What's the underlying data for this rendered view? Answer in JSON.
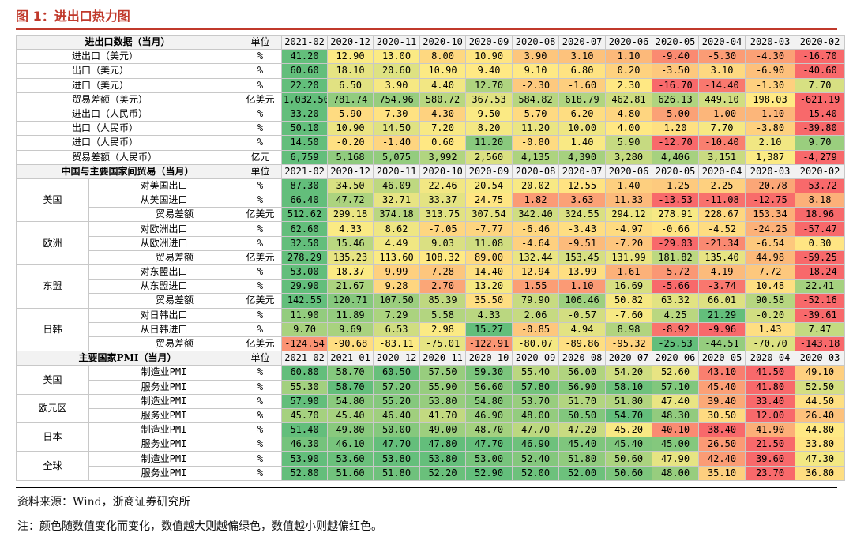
{
  "figure_title": "图 1：进出口热力图",
  "source_note": "资料来源：Wind，浙商证券研究所",
  "color_note": "注：颜色随数值变化而变化，数值越大则越偏绿色，数值越小则越偏红色。",
  "palette": {
    "red": "#f8696b",
    "yellow": "#ffeb84",
    "green": "#63be7b"
  },
  "sections": [
    {
      "title": "进出口数据（当月）",
      "unit_header": "单位",
      "dates": [
        "2021-02",
        "2020-12",
        "2020-11",
        "2020-10",
        "2020-09",
        "2020-08",
        "2020-07",
        "2020-06",
        "2020-05",
        "2020-04",
        "2020-03",
        "2020-02"
      ],
      "rows": [
        {
          "label": "进出口（美元）",
          "unit": "%",
          "values": [
            "41.20",
            "12.90",
            "13.00",
            "8.00",
            "10.90",
            "3.90",
            "3.10",
            "1.10",
            "-9.40",
            "-5.30",
            "-4.30",
            "-16.70"
          ]
        },
        {
          "label": "出口（美元）",
          "unit": "%",
          "values": [
            "60.60",
            "18.10",
            "20.60",
            "10.90",
            "9.40",
            "9.10",
            "6.80",
            "0.20",
            "-3.50",
            "3.10",
            "-6.90",
            "-40.60"
          ]
        },
        {
          "label": "进口（美元）",
          "unit": "%",
          "values": [
            "22.20",
            "6.50",
            "3.90",
            "4.40",
            "12.70",
            "-2.30",
            "-1.60",
            "2.30",
            "-16.70",
            "-14.40",
            "-1.30",
            "7.70"
          ]
        },
        {
          "label": "贸易差额（美元）",
          "unit": "亿美元",
          "values": [
            "1,032.50",
            "781.74",
            "754.96",
            "580.72",
            "367.53",
            "584.82",
            "618.79",
            "462.81",
            "626.13",
            "449.10",
            "198.03",
            "-621.19"
          ]
        },
        {
          "label": "进出口（人民币）",
          "unit": "%",
          "values": [
            "33.20",
            "5.90",
            "7.30",
            "4.30",
            "9.50",
            "5.70",
            "6.20",
            "4.80",
            "-5.00",
            "-1.00",
            "-1.10",
            "-15.40"
          ]
        },
        {
          "label": "出口（人民币）",
          "unit": "%",
          "values": [
            "50.10",
            "10.90",
            "14.50",
            "7.20",
            "8.20",
            "11.20",
            "10.00",
            "4.00",
            "1.20",
            "7.70",
            "-3.80",
            "-39.80"
          ]
        },
        {
          "label": "进口（人民币）",
          "unit": "%",
          "values": [
            "14.50",
            "-0.20",
            "-1.40",
            "0.60",
            "11.20",
            "-0.80",
            "1.40",
            "5.90",
            "-12.70",
            "-10.40",
            "2.10",
            "9.70"
          ]
        },
        {
          "label": "贸易差额（人民币）",
          "unit": "亿元",
          "values": [
            "6,759",
            "5,168",
            "5,075",
            "3,992",
            "2,560",
            "4,135",
            "4,390",
            "3,280",
            "4,406",
            "3,151",
            "1,387",
            "-4,279"
          ]
        }
      ]
    },
    {
      "title": "中国与主要国家间贸易（当月）",
      "unit_header": "单位",
      "dates": [
        "2021-02",
        "2020-12",
        "2020-11",
        "2020-10",
        "2020-09",
        "2020-08",
        "2020-07",
        "2020-06",
        "2020-05",
        "2020-04",
        "2020-03",
        "2020-02"
      ],
      "groups": [
        {
          "name": "美国",
          "rows": [
            {
              "label": "对美国出口",
              "unit": "%",
              "values": [
                "87.30",
                "34.50",
                "46.09",
                "22.46",
                "20.54",
                "20.02",
                "12.55",
                "1.40",
                "-1.25",
                "2.25",
                "-20.78",
                "-53.72"
              ]
            },
            {
              "label": "从美国进口",
              "unit": "%",
              "values": [
                "66.40",
                "47.72",
                "32.71",
                "33.37",
                "24.75",
                "1.82",
                "3.63",
                "11.33",
                "-13.53",
                "-11.08",
                "-12.75",
                "8.18"
              ]
            },
            {
              "label": "贸易差额",
              "unit": "亿美元",
              "values": [
                "512.62",
                "299.18",
                "374.18",
                "313.75",
                "307.54",
                "342.40",
                "324.55",
                "294.12",
                "278.91",
                "228.67",
                "153.34",
                "18.96"
              ]
            }
          ]
        },
        {
          "name": "欧洲",
          "rows": [
            {
              "label": "对欧洲出口",
              "unit": "%",
              "values": [
                "62.60",
                "4.33",
                "8.62",
                "-7.05",
                "-7.77",
                "-6.46",
                "-3.43",
                "-4.97",
                "-0.66",
                "-4.52",
                "-24.25",
                "-57.47"
              ]
            },
            {
              "label": "从欧洲进口",
              "unit": "%",
              "values": [
                "32.50",
                "15.46",
                "4.49",
                "9.03",
                "11.08",
                "-4.64",
                "-9.51",
                "-7.20",
                "-29.03",
                "-21.34",
                "-6.54",
                "0.30"
              ]
            },
            {
              "label": "贸易差额",
              "unit": "亿美元",
              "values": [
                "278.29",
                "135.23",
                "113.60",
                "108.32",
                "89.00",
                "132.44",
                "153.45",
                "131.99",
                "181.82",
                "135.40",
                "44.98",
                "-59.25"
              ]
            }
          ]
        },
        {
          "name": "东盟",
          "rows": [
            {
              "label": "对东盟出口",
              "unit": "%",
              "values": [
                "53.00",
                "18.37",
                "9.99",
                "7.28",
                "14.40",
                "12.94",
                "13.99",
                "1.61",
                "-5.72",
                "4.19",
                "7.72",
                "-18.24"
              ]
            },
            {
              "label": "从东盟进口",
              "unit": "%",
              "values": [
                "29.90",
                "21.67",
                "9.28",
                "2.70",
                "13.20",
                "1.55",
                "1.10",
                "16.69",
                "-5.66",
                "-3.74",
                "10.48",
                "22.41"
              ]
            },
            {
              "label": "贸易差额",
              "unit": "亿美元",
              "values": [
                "142.55",
                "120.71",
                "107.50",
                "85.39",
                "35.50",
                "79.90",
                "106.46",
                "50.82",
                "63.32",
                "66.01",
                "90.58",
                "-52.16"
              ]
            }
          ]
        },
        {
          "name": "日韩",
          "rows": [
            {
              "label": "对日韩出口",
              "unit": "%",
              "values": [
                "11.90",
                "11.89",
                "7.29",
                "5.58",
                "4.33",
                "2.06",
                "-0.57",
                "-7.60",
                "4.25",
                "21.29",
                "-0.20",
                "-39.61"
              ]
            },
            {
              "label": "从日韩进口",
              "unit": "%",
              "values": [
                "9.70",
                "9.69",
                "6.53",
                "2.98",
                "15.27",
                "-0.85",
                "4.94",
                "8.98",
                "-8.92",
                "-9.96",
                "1.43",
                "7.47"
              ]
            },
            {
              "label": "贸易差额",
              "unit": "亿美元",
              "values": [
                "-124.54",
                "-90.68",
                "-83.11",
                "-75.01",
                "-122.91",
                "-80.07",
                "-89.86",
                "-95.32",
                "-25.53",
                "-44.51",
                "-70.70",
                "-143.18"
              ]
            }
          ]
        }
      ]
    },
    {
      "title": "主要国家PMI（当月）",
      "unit_header": "单位",
      "dates": [
        "2021-02",
        "2021-01",
        "2020-12",
        "2020-11",
        "2020-10",
        "2020-09",
        "2020-08",
        "2020-07",
        "2020-06",
        "2020-05",
        "2020-04",
        "2020-03"
      ],
      "groups": [
        {
          "name": "美国",
          "rows": [
            {
              "label": "制造业PMI",
              "unit": "%",
              "values": [
                "60.80",
                "58.70",
                "60.50",
                "57.50",
                "59.30",
                "55.40",
                "56.00",
                "54.20",
                "52.60",
                "43.10",
                "41.50",
                "49.10"
              ]
            },
            {
              "label": "服务业PMI",
              "unit": "%",
              "values": [
                "55.30",
                "58.70",
                "57.20",
                "55.90",
                "56.60",
                "57.80",
                "56.90",
                "58.10",
                "57.10",
                "45.40",
                "41.80",
                "52.50"
              ]
            }
          ]
        },
        {
          "name": "欧元区",
          "rows": [
            {
              "label": "制造业PMI",
              "unit": "%",
              "values": [
                "57.90",
                "54.80",
                "55.20",
                "53.80",
                "54.80",
                "53.70",
                "51.70",
                "51.80",
                "47.40",
                "39.40",
                "33.40",
                "44.50"
              ]
            },
            {
              "label": "服务业PMI",
              "unit": "%",
              "values": [
                "45.70",
                "45.40",
                "46.40",
                "41.70",
                "46.90",
                "48.00",
                "50.50",
                "54.70",
                "48.30",
                "30.50",
                "12.00",
                "26.40"
              ]
            }
          ]
        },
        {
          "name": "日本",
          "rows": [
            {
              "label": "制造业PMI",
              "unit": "%",
              "values": [
                "51.40",
                "49.80",
                "50.00",
                "49.00",
                "48.70",
                "47.70",
                "47.20",
                "45.20",
                "40.10",
                "38.40",
                "41.90",
                "44.80"
              ]
            },
            {
              "label": "服务业PMI",
              "unit": "%",
              "values": [
                "46.30",
                "46.10",
                "47.70",
                "47.80",
                "47.70",
                "46.90",
                "45.40",
                "45.40",
                "45.00",
                "26.50",
                "21.50",
                "33.80"
              ]
            }
          ]
        },
        {
          "name": "全球",
          "rows": [
            {
              "label": "制造业PMI",
              "unit": "%",
              "values": [
                "53.90",
                "53.60",
                "53.80",
                "53.80",
                "53.00",
                "52.40",
                "51.80",
                "50.60",
                "47.90",
                "42.40",
                "39.60",
                "47.30"
              ]
            },
            {
              "label": "服务业PMI",
              "unit": "%",
              "values": [
                "52.80",
                "51.60",
                "51.80",
                "52.20",
                "52.90",
                "52.00",
                "52.00",
                "50.60",
                "48.00",
                "35.10",
                "23.70",
                "36.80"
              ]
            }
          ]
        }
      ]
    }
  ]
}
